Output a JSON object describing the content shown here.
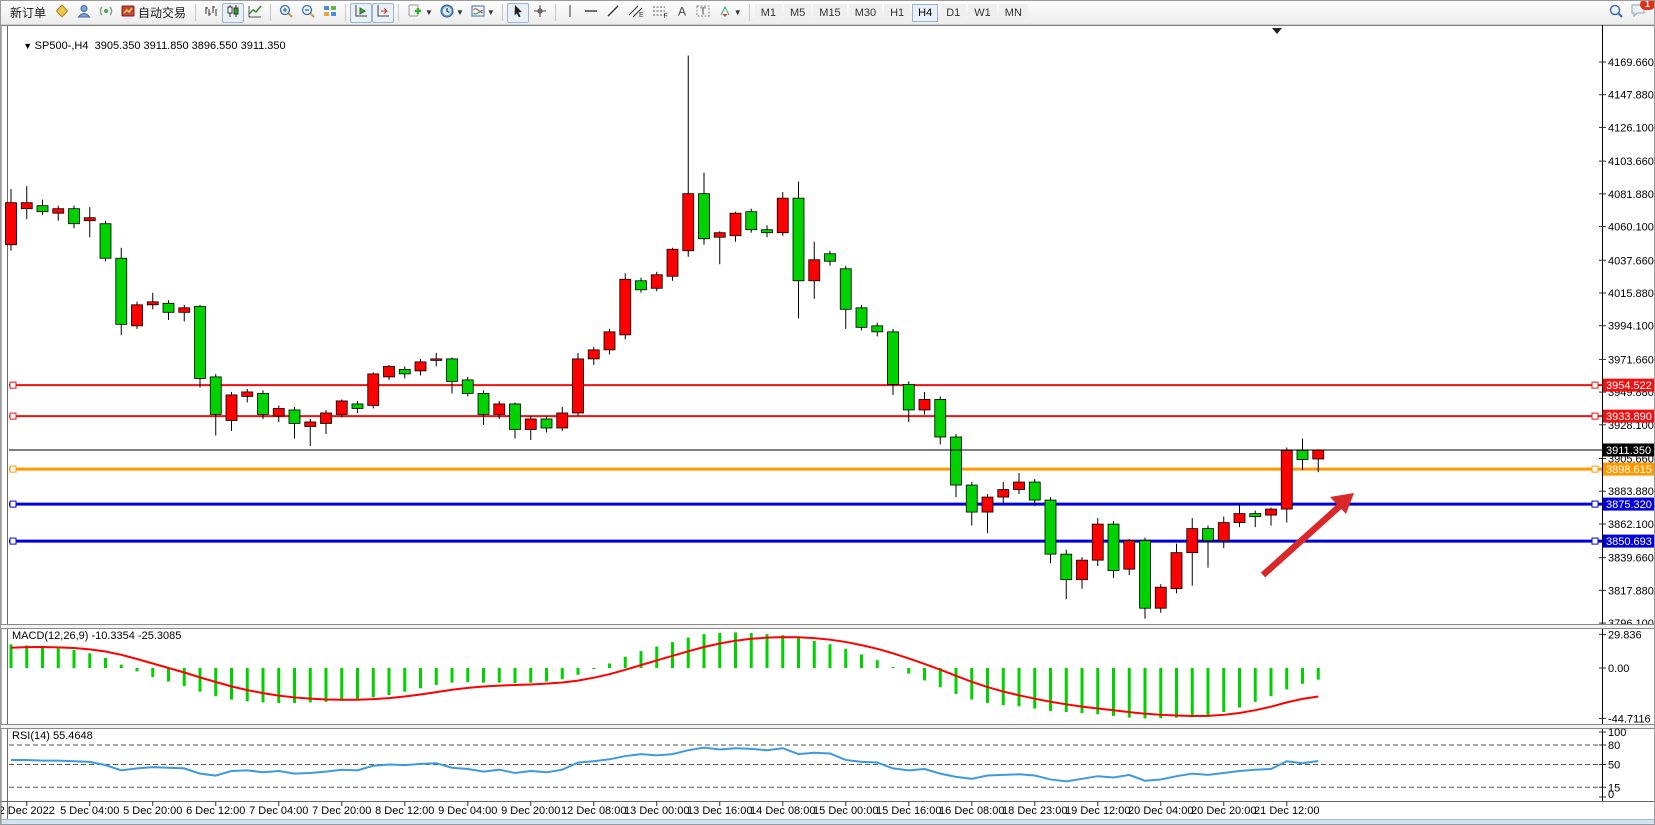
{
  "toolbar": {
    "new_order_label": "新订单",
    "auto_trading_label": "自动交易",
    "timeframes": [
      "M1",
      "M5",
      "M15",
      "M30",
      "H1",
      "H4",
      "D1",
      "W1",
      "MN"
    ],
    "active_timeframe": "H4",
    "notification_count": "1",
    "icons": [
      "market-watch-diamond",
      "profiles",
      "alerts-signal",
      "auto-trading",
      "bar-chart",
      "candlestick-chart",
      "line-chart",
      "zoom-in",
      "zoom-out",
      "tile-windows",
      "auto-scroll",
      "chart-shift",
      "indicators-add",
      "periods-clock",
      "templates",
      "cursor",
      "crosshair",
      "vertical-line",
      "horizontal-line",
      "trendline",
      "equidistant-channel",
      "fibonacci",
      "text",
      "text-label",
      "arrow-objects",
      "search",
      "notifications-chat"
    ]
  },
  "chart": {
    "symbol_period": "SP500-,H4",
    "ohlc_display": "3905.350 3911.850 3896.550 3911.350",
    "price_axis_ticks": [
      "4169.660",
      "4147.880",
      "4126.100",
      "4103.660",
      "4081.880",
      "4060.100",
      "4037.660",
      "4015.880",
      "3994.100",
      "3971.660",
      "3949.880",
      "3928.100",
      "3905.660",
      "3883.880",
      "3862.100",
      "3839.660",
      "3817.880",
      "3796.100"
    ],
    "price_lines": [
      {
        "label": "3954.522",
        "price": 3954.522,
        "color": "#ee1111",
        "width": 2,
        "kind": "resistance"
      },
      {
        "label": "3933.890",
        "price": 3933.89,
        "color": "#ee1111",
        "width": 2,
        "kind": "resistance"
      },
      {
        "label": "3898.615",
        "price": 3898.615,
        "color": "#ff9900",
        "width": 3,
        "kind": "level"
      },
      {
        "label": "3875.320",
        "price": 3875.32,
        "color": "#0000dd",
        "width": 3,
        "kind": "support"
      },
      {
        "label": "3850.693",
        "price": 3850.693,
        "color": "#0000dd",
        "width": 3,
        "kind": "support"
      }
    ],
    "current_price": {
      "label": "3911.350",
      "price": 3911.35
    },
    "macd_label": "MACD(12,26,9) -10.3354 -25.3085",
    "macd_axis": [
      {
        "label": "29.836",
        "value": 29.836
      },
      {
        "label": "0.00",
        "value": 0
      },
      {
        "label": "-44.7116",
        "value": -44.7116
      }
    ],
    "rsi_label": "RSI(14) 55.4648",
    "rsi_axis": [
      {
        "label": "100",
        "value": 100
      },
      {
        "label": "80",
        "value": 80
      },
      {
        "label": "50",
        "value": 50
      },
      {
        "label": "15",
        "value": 15
      },
      {
        "label": "0",
        "value": 0
      }
    ],
    "date_axis_labels": [
      "2 Dec 2022",
      "5 Dec 04:00",
      "5 Dec 20:00",
      "6 Dec 12:00",
      "7 Dec 04:00",
      "7 Dec 20:00",
      "8 Dec 12:00",
      "9 Dec 04:00",
      "9 Dec 20:00",
      "12 Dec 08:00",
      "13 Dec 00:00",
      "13 Dec 16:00",
      "14 Dec 08:00",
      "15 Dec 00:00",
      "15 Dec 16:00",
      "16 Dec 08:00",
      "18 Dec 23:00",
      "19 Dec 12:00",
      "20 Dec 04:00",
      "20 Dec 20:00",
      "21 Dec 12:00"
    ],
    "annotation": {
      "type": "trend-arrow",
      "direction": "up-right",
      "color": "#d82828"
    }
  },
  "chart_data": {
    "type": "candlestick",
    "symbol": "SP500-",
    "period": "H4",
    "ylim": [
      3796.1,
      4169.66
    ],
    "up_color": "#ff0000",
    "down_color": "#00d200",
    "candles": [
      [
        4048,
        4085,
        4044,
        4076
      ],
      [
        4072,
        4087,
        4065,
        4076
      ],
      [
        4074,
        4078,
        4068,
        4070
      ],
      [
        4069,
        4074,
        4064,
        4072
      ],
      [
        4072,
        4074,
        4059,
        4062
      ],
      [
        4064,
        4073,
        4053,
        4066
      ],
      [
        4062,
        4064,
        4037,
        4039
      ],
      [
        4039,
        4046,
        3988,
        3995
      ],
      [
        3994,
        4010,
        3992,
        4008
      ],
      [
        4008,
        4016,
        4005,
        4010
      ],
      [
        4009,
        4011,
        3998,
        4003
      ],
      [
        4003,
        4008,
        3997,
        4006
      ],
      [
        4007,
        4008,
        3953,
        3959
      ],
      [
        3960,
        3962,
        3921,
        3935
      ],
      [
        3931,
        3950,
        3924,
        3948
      ],
      [
        3947,
        3952,
        3943,
        3950
      ],
      [
        3949,
        3951,
        3932,
        3935
      ],
      [
        3934,
        3941,
        3930,
        3939
      ],
      [
        3938,
        3940,
        3919,
        3929
      ],
      [
        3927,
        3932,
        3914,
        3930
      ],
      [
        3929,
        3938,
        3922,
        3936
      ],
      [
        3935,
        3945,
        3933,
        3944
      ],
      [
        3942,
        3944,
        3936,
        3939
      ],
      [
        3941,
        3963,
        3939,
        3962
      ],
      [
        3960,
        3968,
        3958,
        3967
      ],
      [
        3965,
        3967,
        3959,
        3962
      ],
      [
        3964,
        3972,
        3961,
        3970
      ],
      [
        3971,
        3976,
        3967,
        3972
      ],
      [
        3972,
        3973,
        3949,
        3957
      ],
      [
        3958,
        3960,
        3947,
        3949
      ],
      [
        3949,
        3951,
        3928,
        3935
      ],
      [
        3935,
        3944,
        3932,
        3942
      ],
      [
        3942,
        3943,
        3919,
        3925
      ],
      [
        3925,
        3934,
        3918,
        3932
      ],
      [
        3932,
        3934,
        3923,
        3926
      ],
      [
        3926,
        3940,
        3924,
        3936
      ],
      [
        3936,
        3976,
        3934,
        3972
      ],
      [
        3972,
        3980,
        3968,
        3978
      ],
      [
        3978,
        3992,
        3975,
        3990
      ],
      [
        3988,
        4029,
        3985,
        4025
      ],
      [
        4024,
        4026,
        4016,
        4018
      ],
      [
        4019,
        4030,
        4017,
        4028
      ],
      [
        4027,
        4046,
        4024,
        4045
      ],
      [
        4044,
        4174,
        4040,
        4082
      ],
      [
        4082,
        4096,
        4048,
        4052
      ],
      [
        4053,
        4057,
        4035,
        4056
      ],
      [
        4054,
        4070,
        4050,
        4069
      ],
      [
        4070,
        4072,
        4056,
        4058
      ],
      [
        4058,
        4061,
        4053,
        4056
      ],
      [
        4056,
        4083,
        4054,
        4079
      ],
      [
        4079,
        4090,
        3999,
        4024
      ],
      [
        4024,
        4050,
        4012,
        4038
      ],
      [
        4042,
        4044,
        4034,
        4037
      ],
      [
        4032,
        4034,
        3992,
        4005
      ],
      [
        4006,
        4008,
        3991,
        3993
      ],
      [
        3994,
        3996,
        3987,
        3990
      ],
      [
        3990,
        3992,
        3948,
        3955
      ],
      [
        3955,
        3957,
        3930,
        3938
      ],
      [
        3938,
        3950,
        3935,
        3945
      ],
      [
        3945,
        3947,
        3915,
        3920
      ],
      [
        3920,
        3922,
        3880,
        3888
      ],
      [
        3888,
        3890,
        3861,
        3870
      ],
      [
        3870,
        3882,
        3856,
        3880
      ],
      [
        3880,
        3890,
        3876,
        3885
      ],
      [
        3885,
        3896,
        3882,
        3890
      ],
      [
        3890,
        3892,
        3874,
        3878
      ],
      [
        3878,
        3880,
        3836,
        3842
      ],
      [
        3842,
        3845,
        3812,
        3825
      ],
      [
        3825,
        3840,
        3819,
        3838
      ],
      [
        3838,
        3866,
        3834,
        3862
      ],
      [
        3862,
        3864,
        3826,
        3831
      ],
      [
        3832,
        3852,
        3828,
        3851
      ],
      [
        3851,
        3853,
        3799,
        3806
      ],
      [
        3806,
        3822,
        3803,
        3820
      ],
      [
        3819,
        3849,
        3816,
        3843
      ],
      [
        3843,
        3866,
        3821,
        3859
      ],
      [
        3859,
        3861,
        3833,
        3851
      ],
      [
        3851,
        3867,
        3846,
        3863
      ],
      [
        3863,
        3876,
        3860,
        3869
      ],
      [
        3869,
        3871,
        3860,
        3867
      ],
      [
        3868,
        3873,
        3861,
        3872
      ],
      [
        3872,
        3913,
        3863,
        3911
      ],
      [
        3911,
        3919,
        3898,
        3905
      ],
      [
        3905.35,
        3911.85,
        3896.55,
        3911.35
      ]
    ],
    "macd": {
      "params": "12,26,9",
      "last_main": -10.3354,
      "last_signal": -25.3085,
      "range": [
        -44.7116,
        29.836
      ],
      "main": [
        21,
        20,
        19,
        17.5,
        16,
        13,
        9,
        3,
        -3,
        -8,
        -12,
        -16,
        -21,
        -25,
        -28,
        -29.5,
        -30.5,
        -31,
        -31,
        -30.5,
        -30,
        -29,
        -28,
        -26,
        -24,
        -21,
        -18,
        -15,
        -13,
        -12.5,
        -13,
        -13,
        -13.5,
        -13,
        -12,
        -10,
        -6,
        -1,
        4,
        10,
        15,
        19,
        23,
        27,
        30,
        31,
        31.5,
        31,
        30,
        29,
        27,
        24,
        21,
        17,
        12,
        7,
        1,
        -5,
        -11,
        -17,
        -23,
        -28,
        -31,
        -33,
        -34,
        -36,
        -38,
        -39,
        -40,
        -41,
        -42.5,
        -44,
        -44.7,
        -44.5,
        -44,
        -43.5,
        -42,
        -39,
        -35,
        -30,
        -25,
        -19,
        -14,
        -10.34
      ],
      "signal": [
        18,
        18.5,
        18.6,
        18.3,
        17.7,
        16.5,
        14.6,
        11.7,
        8,
        4,
        0,
        -4,
        -8.3,
        -12.4,
        -16.3,
        -19.6,
        -22.3,
        -24.5,
        -26.1,
        -27.2,
        -27.9,
        -28.2,
        -28.2,
        -27.6,
        -26.7,
        -25.3,
        -23.5,
        -21.4,
        -19.3,
        -17.6,
        -16.4,
        -15.6,
        -15.1,
        -14.6,
        -13.9,
        -12.9,
        -11.2,
        -8.6,
        -5.5,
        -1.6,
        2.6,
        6.7,
        10.8,
        14.8,
        18.6,
        21.7,
        24.2,
        25.9,
        26.9,
        27.4,
        27.3,
        26.5,
        25.1,
        23.1,
        20.3,
        17,
        13,
        8.5,
        3.6,
        -1.5,
        -6.9,
        -12.2,
        -16.9,
        -20.9,
        -24.2,
        -27.2,
        -29.9,
        -32.2,
        -34.2,
        -35.9,
        -37.5,
        -39.1,
        -40.5,
        -41.5,
        -42.1,
        -42.5,
        -42.4,
        -41.5,
        -39.9,
        -37.4,
        -34.3,
        -30.5,
        -27.4,
        -25.31
      ]
    },
    "rsi": {
      "period": 14,
      "last": 55.4648,
      "levels": [
        80,
        50,
        15
      ],
      "values": [
        57,
        57,
        56,
        56,
        55,
        54,
        49,
        41,
        44,
        46,
        45,
        44,
        36,
        33,
        40,
        41,
        38,
        40,
        36,
        37,
        39,
        42,
        41,
        48,
        50,
        49,
        51,
        52,
        45,
        43,
        39,
        42,
        37,
        40,
        38,
        42,
        53,
        55,
        58,
        63,
        66,
        64,
        66,
        72,
        76,
        73,
        75,
        74,
        72,
        75,
        66,
        68,
        67,
        57,
        54,
        53,
        44,
        41,
        43,
        36,
        31,
        28,
        33,
        34,
        35,
        33,
        27,
        24,
        28,
        32,
        30,
        34,
        25,
        27,
        32,
        36,
        34,
        37,
        40,
        42,
        43,
        55,
        52,
        55.46
      ]
    }
  }
}
